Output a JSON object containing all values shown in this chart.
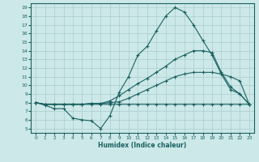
{
  "xlabel": "Humidex (Indice chaleur)",
  "background_color": "#cce8e8",
  "grid_color": "#aacccc",
  "line_color": "#1a6060",
  "xlim": [
    -0.5,
    23.5
  ],
  "ylim": [
    4.5,
    19.5
  ],
  "xticks": [
    0,
    1,
    2,
    3,
    4,
    5,
    6,
    7,
    8,
    9,
    10,
    11,
    12,
    13,
    14,
    15,
    16,
    17,
    18,
    19,
    20,
    21,
    22,
    23
  ],
  "yticks": [
    5,
    6,
    7,
    8,
    9,
    10,
    11,
    12,
    13,
    14,
    15,
    16,
    17,
    18,
    19
  ],
  "line_zigzag_x": [
    0,
    1,
    2,
    3,
    4,
    5,
    6,
    7,
    8,
    9,
    10,
    11,
    12,
    13,
    14,
    15,
    16,
    17,
    18,
    19,
    20,
    21,
    22,
    23
  ],
  "line_zigzag_y": [
    8.0,
    7.7,
    7.3,
    7.3,
    6.2,
    6.0,
    5.9,
    5.0,
    6.5,
    9.2,
    11.0,
    13.5,
    14.5,
    16.3,
    18.0,
    19.0,
    18.5,
    17.0,
    15.2,
    13.5,
    11.3,
    9.5,
    9.0,
    7.8
  ],
  "line_flat_x": [
    0,
    1,
    2,
    3,
    4,
    5,
    6,
    7,
    8,
    9,
    10,
    11,
    12,
    13,
    14,
    15,
    16,
    17,
    18,
    19,
    20,
    21,
    22,
    23
  ],
  "line_flat_y": [
    8.0,
    7.8,
    7.8,
    7.8,
    7.8,
    7.8,
    7.8,
    7.8,
    7.8,
    7.8,
    7.8,
    7.8,
    7.8,
    7.8,
    7.8,
    7.8,
    7.8,
    7.8,
    7.8,
    7.8,
    7.8,
    7.8,
    7.8,
    7.8
  ],
  "line_gentle_x": [
    0,
    1,
    2,
    3,
    4,
    5,
    6,
    7,
    8,
    9,
    10,
    11,
    12,
    13,
    14,
    15,
    16,
    17,
    18,
    19,
    20,
    21,
    22,
    23
  ],
  "line_gentle_y": [
    8.0,
    7.8,
    7.8,
    7.8,
    7.8,
    7.8,
    7.9,
    7.9,
    8.0,
    8.1,
    8.5,
    9.0,
    9.5,
    10.0,
    10.5,
    11.0,
    11.3,
    11.5,
    11.5,
    11.5,
    11.3,
    11.0,
    10.5,
    7.8
  ],
  "line_mid_x": [
    0,
    1,
    2,
    3,
    4,
    5,
    6,
    7,
    8,
    9,
    10,
    11,
    12,
    13,
    14,
    15,
    16,
    17,
    18,
    19,
    20,
    21,
    22,
    23
  ],
  "line_mid_y": [
    8.0,
    7.8,
    7.8,
    7.8,
    7.8,
    7.8,
    7.9,
    7.9,
    8.2,
    8.8,
    9.5,
    10.2,
    10.8,
    11.5,
    12.2,
    13.0,
    13.5,
    14.0,
    14.0,
    13.8,
    11.5,
    9.8,
    9.0,
    7.8
  ]
}
